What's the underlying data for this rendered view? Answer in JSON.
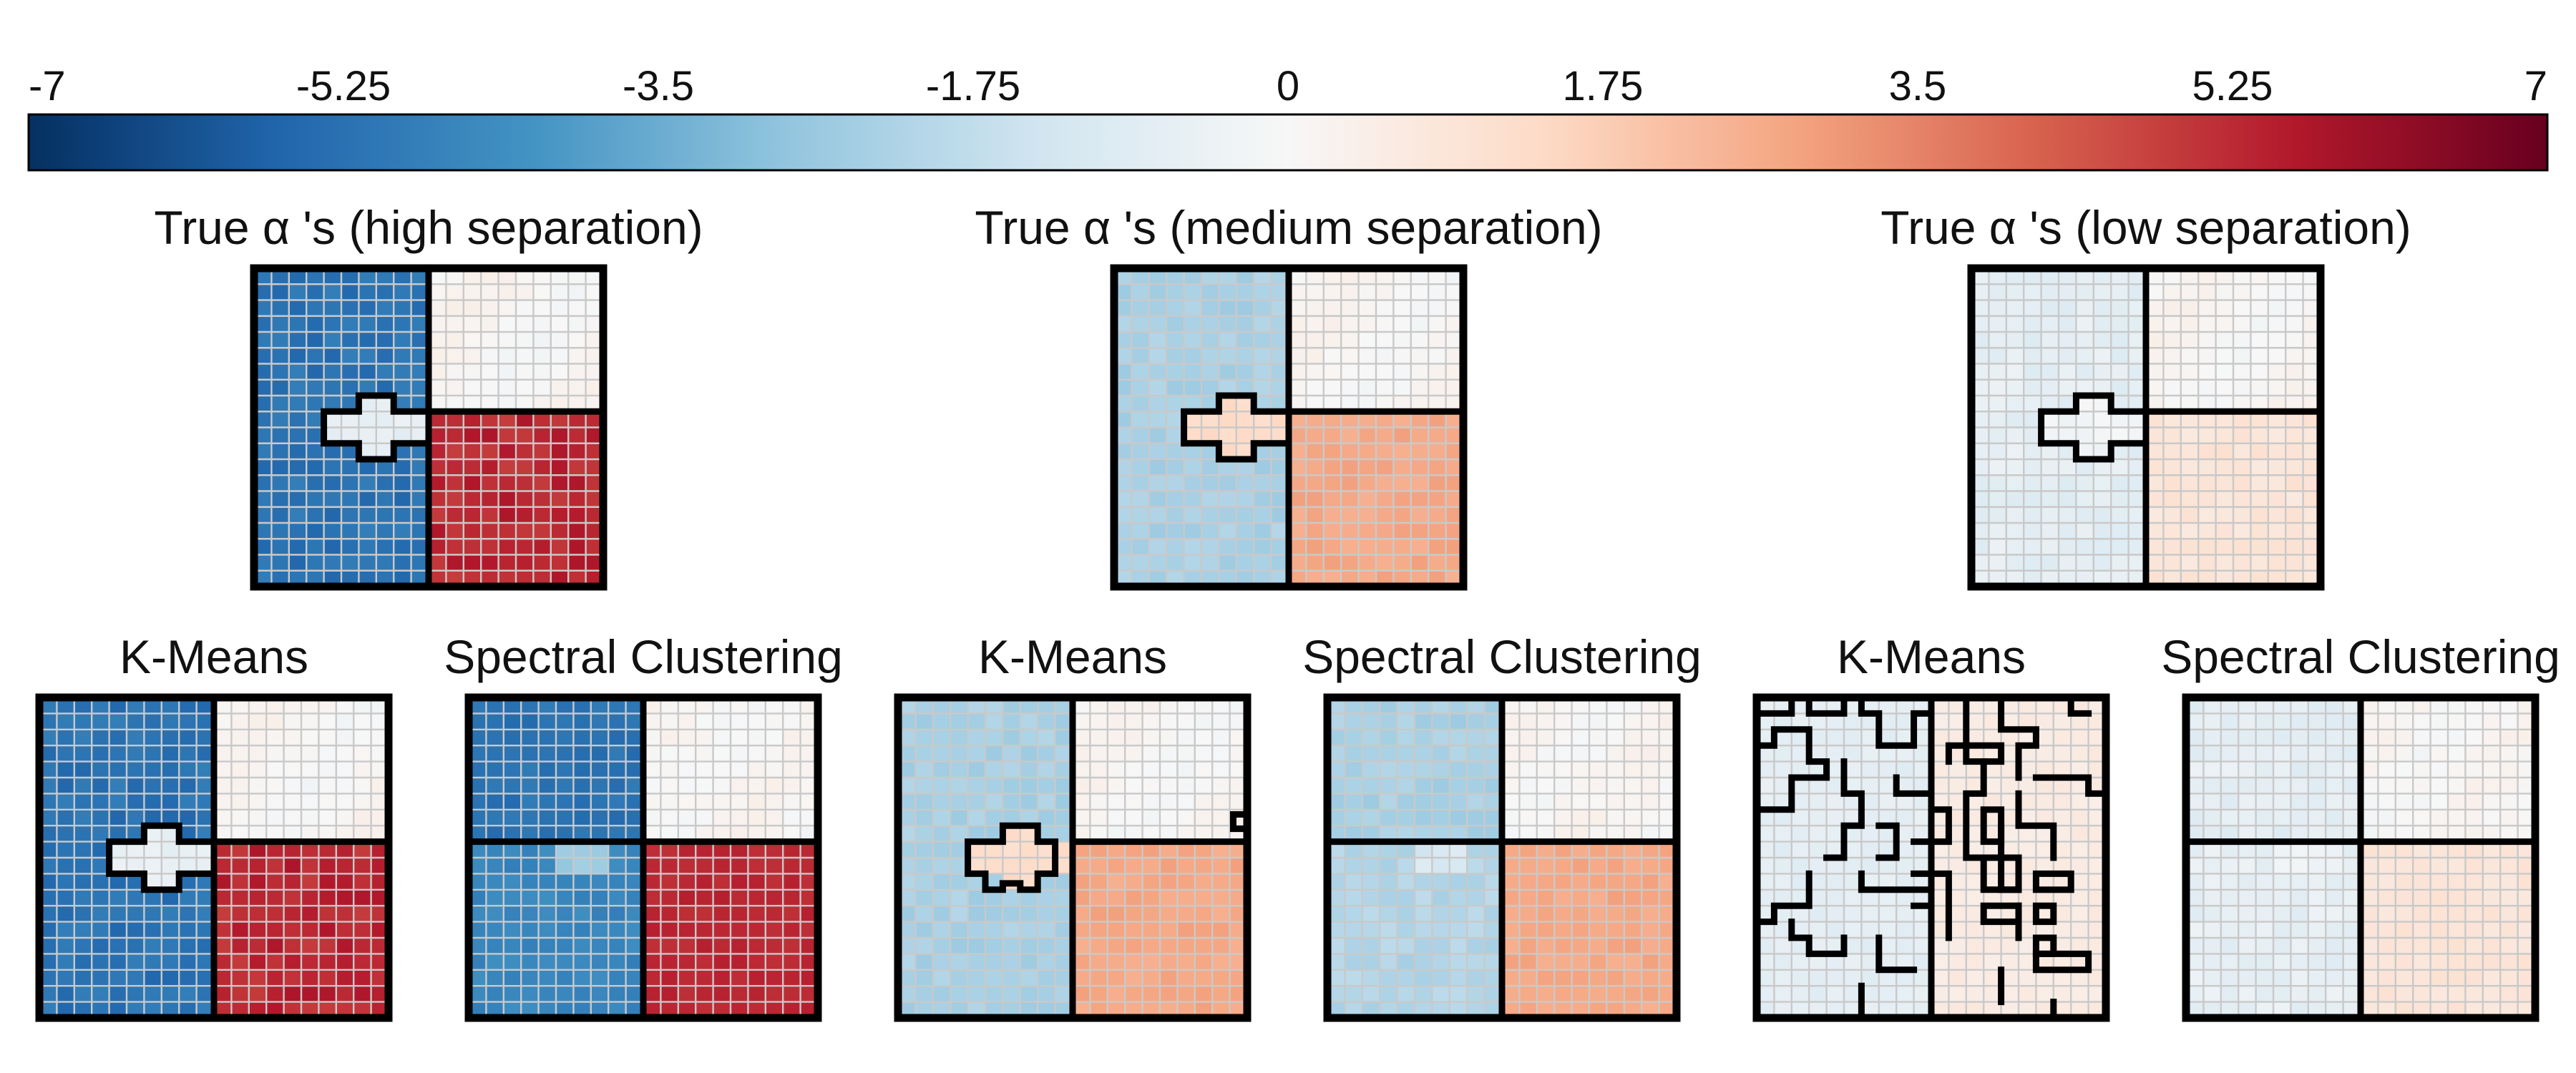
{
  "chart_data": {
    "type": "heatmap",
    "colorbar": {
      "min": -7,
      "max": 7,
      "ticks": [
        "-7",
        "-5.25",
        "-3.5",
        "-1.75",
        "0",
        "1.75",
        "3.5",
        "5.25",
        "7"
      ],
      "colormap": "RdBu_r",
      "colors": [
        "#053061",
        "#2166ac",
        "#4393c3",
        "#92c5de",
        "#d1e5f0",
        "#f7f7f7",
        "#fddbc7",
        "#f4a582",
        "#d6604d",
        "#b2182b",
        "#67001f"
      ]
    },
    "grid_size": 20,
    "panels": [
      {
        "id": "true-high",
        "title": "True α 's (high separation)",
        "values": {
          "left": -5.2,
          "top_right": 0.1,
          "bottom_right": 5.3,
          "cross": -0.6
        },
        "clusters": "left/top-right/bottom-right with cross"
      },
      {
        "id": "true-medium",
        "title": "True α 's (medium separation)",
        "values": {
          "left": -2.3,
          "top_right": 0.1,
          "bottom_right": 2.7,
          "cross": 1.3
        },
        "clusters": "left/top-right/bottom-right with cross"
      },
      {
        "id": "true-low",
        "title": "True α 's (low separation)",
        "values": {
          "left": -0.7,
          "top_right": 0.1,
          "bottom_right": 0.9,
          "cross": -0.2
        },
        "clusters": "left/top-right/bottom-right with cross"
      },
      {
        "id": "kmeans-high",
        "title": "K-Means",
        "values": {
          "left": -5.2,
          "top_right": 0.1,
          "bottom_right": 5.3,
          "cross": -0.6
        },
        "clusters": "left/top-right/bottom-right with cross"
      },
      {
        "id": "spectral-high",
        "title": "Spectral Clustering",
        "values": {
          "top_left": -5.2,
          "bottom_left": -4.6,
          "top_right": 0.1,
          "bottom_right": 5.3
        },
        "clusters": "four quadrants"
      },
      {
        "id": "kmeans-medium",
        "title": "K-Means",
        "values": {
          "left": -2.3,
          "top_right": 0.1,
          "bottom_right": 2.7,
          "cross": 1.3
        },
        "clusters": "left/top-right/bottom-right with cross"
      },
      {
        "id": "spectral-medium",
        "title": "Spectral Clustering",
        "values": {
          "top_left": -2.3,
          "bottom_left": -2.1,
          "top_right": 0.1,
          "bottom_right": 2.7
        },
        "clusters": "four quadrants"
      },
      {
        "id": "kmeans-low",
        "title": "K-Means",
        "values": {
          "left": -0.7,
          "right": 0.6
        },
        "clusters": "fragmented"
      },
      {
        "id": "spectral-low",
        "title": "Spectral Clustering",
        "values": {
          "top_left": -0.7,
          "bottom_left": -0.6,
          "top_right": 0.1,
          "bottom_right": 0.9
        },
        "clusters": "four quadrants"
      }
    ]
  }
}
